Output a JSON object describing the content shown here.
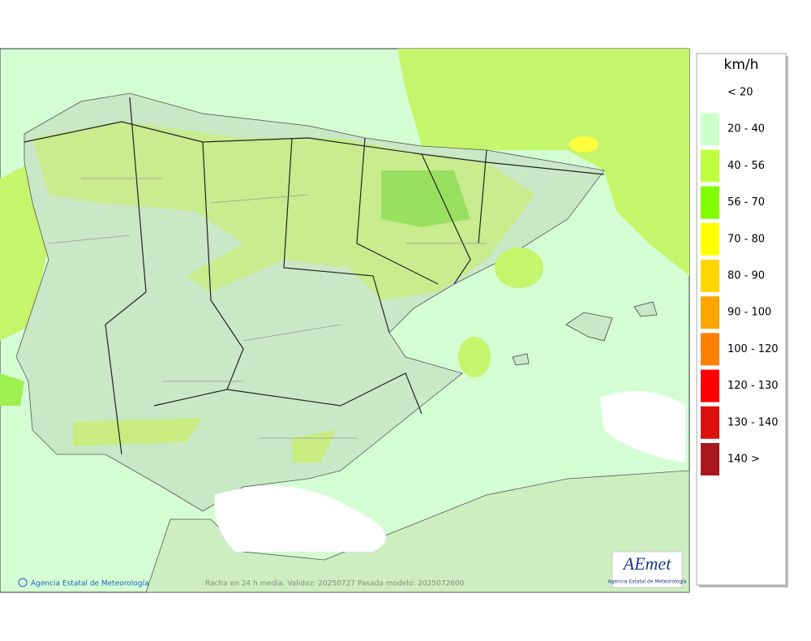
{
  "legend": {
    "unit": "km/h",
    "items": [
      {
        "label": "< 20",
        "color": "#ffffff"
      },
      {
        "label": "20 - 40",
        "color": "#ccffcc"
      },
      {
        "label": "40 - 56",
        "color": "#c0ff40"
      },
      {
        "label": "56 - 70",
        "color": "#80ff00"
      },
      {
        "label": "70 - 80",
        "color": "#ffff00"
      },
      {
        "label": "80 - 90",
        "color": "#ffd700"
      },
      {
        "label": "90 - 100",
        "color": "#ffa500"
      },
      {
        "label": "100 - 120",
        "color": "#ff8000"
      },
      {
        "label": "120 - 130",
        "color": "#ff0000"
      },
      {
        "label": "130 - 140",
        "color": "#dd1010"
      },
      {
        "label": "140 >",
        "color": "#aa1520"
      }
    ]
  },
  "footer": {
    "credit": "Agencia Estatal de Meteorología",
    "caption": "Racha en 24 h media. Validez: 20250727 Pasada modelo: 2025072600"
  },
  "logo": {
    "name": "AEmet",
    "subtitle": "Agencia Estatal de Meteorología"
  }
}
